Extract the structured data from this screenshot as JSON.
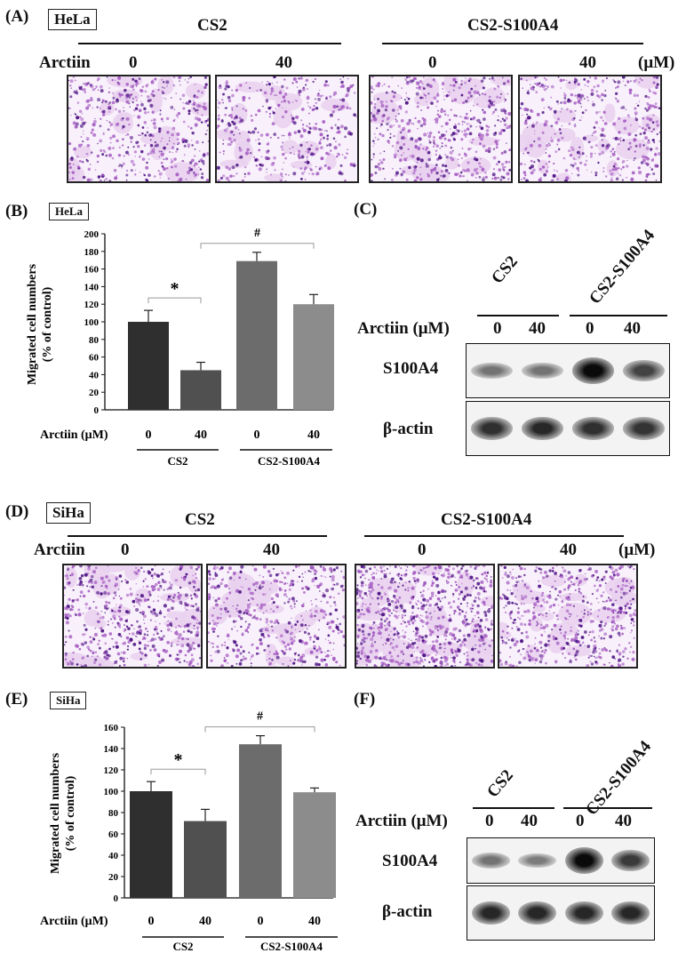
{
  "colors": {
    "stain_light": "#e9d2ee",
    "stain_mid": "#a45ac2",
    "stain_dark": "#4a0f82",
    "bar_dark": "#2f2f2f",
    "bar_mid": "#505050",
    "bar_gray": "#6c6c6c",
    "bar_light": "#8c8c8c"
  },
  "panelA": {
    "letter": "(A)",
    "cell_line": "HeLa",
    "group1": "CS2",
    "group2": "CS2-S100A4",
    "treatment": "Arctiin",
    "doses": [
      "0",
      "40",
      "0",
      "40"
    ],
    "unit": "(μM)",
    "stain_intensity": [
      0.55,
      0.45,
      0.6,
      0.5
    ]
  },
  "panelB": {
    "letter": "(B)",
    "cell_line": "HeLa",
    "y_label_1": "Migrated cell numbers",
    "y_label_2": "(% of control)",
    "treatment_label": "Arctiin (μM)",
    "doses": [
      "0",
      "40",
      "0",
      "40"
    ],
    "group1": "CS2",
    "group2": "CS2-S100A4",
    "sig1": "*",
    "sig2": "#"
  },
  "panelC": {
    "letter": "(C)",
    "group1": "CS2",
    "group2": "CS2-S100A4",
    "treatment_label": "Arctiin (μM)",
    "doses": [
      "0",
      "40",
      "0",
      "40"
    ],
    "protein1": "S100A4",
    "protein2": "β-actin",
    "s100a4_intensity": [
      0.45,
      0.45,
      1.0,
      0.7
    ],
    "actin_intensity": [
      0.8,
      0.85,
      0.8,
      0.78
    ]
  },
  "panelD": {
    "letter": "(D)",
    "cell_line": "SiHa",
    "group1": "CS2",
    "group2": "CS2-S100A4",
    "treatment": "Arctiin",
    "doses": [
      "0",
      "40",
      "0",
      "40"
    ],
    "unit": "(μM)",
    "stain_intensity": [
      0.6,
      0.55,
      0.85,
      0.6
    ]
  },
  "panelE": {
    "letter": "(E)",
    "cell_line": "SiHa",
    "y_label_1": "Migrated cell numbers",
    "y_label_2": "(% of control)",
    "treatment_label": "Arctiin (μM)",
    "doses": [
      "0",
      "40",
      "0",
      "40"
    ],
    "group1": "CS2",
    "group2": "CS2-S100A4",
    "sig1": "*",
    "sig2": "#"
  },
  "panelF": {
    "letter": "(F)",
    "group1": "CS2",
    "group2": "CS2-S100A4",
    "treatment_label": "Arctiin (μM)",
    "doses": [
      "0",
      "40",
      "0",
      "40"
    ],
    "protein1": "S100A4",
    "protein2": "β-actin",
    "s100a4_intensity": [
      0.45,
      0.4,
      1.0,
      0.75
    ],
    "actin_intensity": [
      0.85,
      0.85,
      0.85,
      0.85
    ]
  },
  "chart_data": [
    {
      "type": "bar",
      "categories": [
        "0",
        "40",
        "0",
        "40"
      ],
      "values": [
        100,
        45,
        169,
        120
      ],
      "errors": [
        13,
        9,
        10,
        11
      ],
      "ylim": [
        0,
        200
      ],
      "yticks": [
        0,
        20,
        40,
        60,
        80,
        100,
        120,
        140,
        160,
        180,
        200
      ],
      "ylabel": "Migrated cell numbers (% of control)",
      "xlabel": "Arctiin (μM)",
      "groups": [
        "CS2",
        "CS2-S100A4"
      ],
      "grid": false
    },
    {
      "type": "bar",
      "categories": [
        "0",
        "40",
        "0",
        "40"
      ],
      "values": [
        100,
        72,
        144,
        99
      ],
      "errors": [
        9,
        11,
        8,
        4
      ],
      "ylim": [
        0,
        160
      ],
      "yticks": [
        0,
        20,
        40,
        60,
        80,
        100,
        120,
        140,
        160
      ],
      "ylabel": "Migrated cell numbers (% of control)",
      "xlabel": "Arctiin (μM)",
      "groups": [
        "CS2",
        "CS2-S100A4"
      ],
      "grid": false
    }
  ]
}
